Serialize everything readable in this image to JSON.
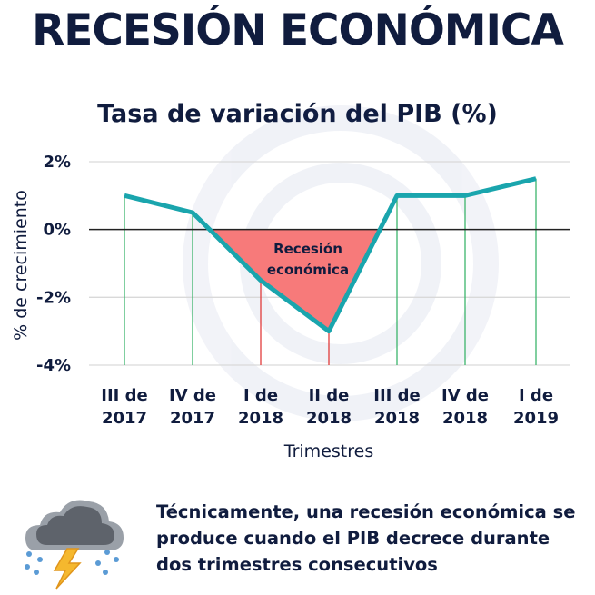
{
  "header": {
    "title": "RECESIÓN ECONÓMICA"
  },
  "colors": {
    "title": "#101c3e",
    "line": "#1aa5ad",
    "recession_fill": "#f77a7a",
    "positive_drop": "#3cb56c",
    "negative_drop": "#e23b3b",
    "grid": "#d9d9d9"
  },
  "chart_data": {
    "type": "line",
    "title": "Tasa de variación del PIB (%)",
    "xlabel": "Trimestres",
    "ylabel": "% de crecimiento",
    "ylim": [
      -4,
      2
    ],
    "yticks": [
      2,
      0,
      -2,
      -4
    ],
    "ytick_labels": [
      "2%",
      "0%",
      "-2%",
      "-4%"
    ],
    "grid": true,
    "categories": [
      "III de 2017",
      "IV de 2017",
      "I de 2018",
      "II de 2018",
      "III de 2018",
      "IV de 2018",
      "I de 2019"
    ],
    "category_lines": [
      [
        "III de",
        "2017"
      ],
      [
        "IV de",
        "2017"
      ],
      [
        "I de",
        "2018"
      ],
      [
        "II de",
        "2018"
      ],
      [
        "III de",
        "2018"
      ],
      [
        "IV de",
        "2018"
      ],
      [
        "I de",
        "2019"
      ]
    ],
    "series": [
      {
        "values": [
          1.0,
          0.5,
          -1.5,
          -3.0,
          1.0,
          1.0,
          1.5
        ]
      }
    ],
    "annotation": {
      "lines": [
        "Recesión",
        "económica"
      ]
    }
  },
  "footer": {
    "note": "Técnicamente, una recesión económica se produce cuando el PIB decrece durante dos trimestres consecutivos",
    "icon": "storm-cloud-icon"
  }
}
